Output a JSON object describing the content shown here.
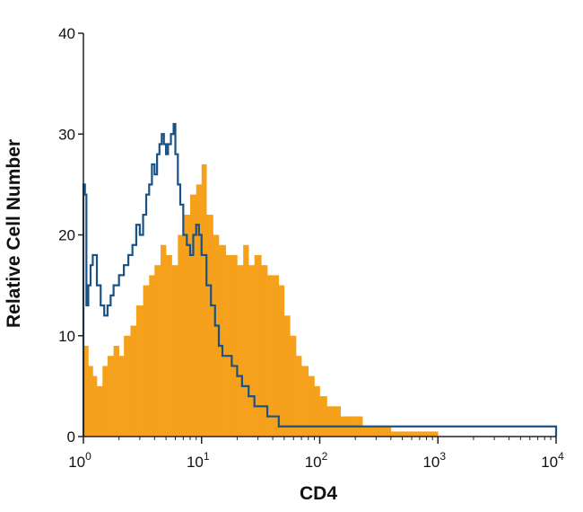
{
  "chart_data": {
    "type": "area",
    "title": "",
    "xlabel": "CD4",
    "ylabel": "Relative Cell Number",
    "xscale": "log",
    "xlim": [
      1,
      10000
    ],
    "ylim": [
      0,
      40
    ],
    "grid": false,
    "legend": "none",
    "x_ticks": [
      {
        "value": 1,
        "base": "10",
        "exp": "0"
      },
      {
        "value": 10,
        "base": "10",
        "exp": "1"
      },
      {
        "value": 100,
        "base": "10",
        "exp": "2"
      },
      {
        "value": 1000,
        "base": "10",
        "exp": "3"
      },
      {
        "value": 10000,
        "base": "10",
        "exp": "4"
      }
    ],
    "y_ticks": [
      {
        "value": 0,
        "label": "0"
      },
      {
        "value": 10,
        "label": "10"
      },
      {
        "value": 20,
        "label": "20"
      },
      {
        "value": 30,
        "label": "30"
      },
      {
        "value": 40,
        "label": "40"
      }
    ],
    "series": [
      {
        "style": "filled-histogram",
        "color": "#F5A11C",
        "x": [
          1.0,
          1.1,
          1.2,
          1.3,
          1.45,
          1.6,
          1.8,
          2.0,
          2.2,
          2.5,
          2.8,
          3.2,
          3.6,
          4.0,
          4.5,
          5.0,
          5.6,
          6.3,
          7.0,
          8.0,
          9.0,
          10.0,
          11.0,
          12.5,
          14.0,
          16.0,
          18.0,
          20.0,
          22.5,
          25.0,
          28.0,
          32.0,
          36.0,
          40.0,
          45.0,
          50.0,
          56.0,
          63.0,
          70.0,
          80.0,
          90.0,
          100.0,
          115.0,
          130.0,
          150.0,
          170.0,
          200.0,
          230.0,
          260.0,
          300.0,
          350.0,
          400.0,
          500.0,
          600.0,
          700.0,
          850.0,
          1000.0
        ],
        "y": [
          9,
          7,
          6,
          5,
          7,
          8,
          9,
          8,
          10,
          11,
          13,
          15,
          16,
          17,
          19,
          18,
          17,
          20,
          22,
          24,
          25,
          27,
          22,
          20,
          19,
          18,
          18,
          17,
          19,
          17,
          18,
          17,
          16,
          16,
          15,
          12,
          10,
          8,
          7,
          6,
          5,
          4,
          3,
          3,
          2,
          2,
          2,
          1,
          1,
          1,
          1,
          0.5,
          0.5,
          0.5,
          0.5,
          0.5,
          0
        ]
      },
      {
        "style": "outline-histogram",
        "color": "#1A5286",
        "x": [
          1.0,
          1.03,
          1.06,
          1.1,
          1.15,
          1.2,
          1.3,
          1.4,
          1.5,
          1.6,
          1.7,
          1.8,
          2.0,
          2.2,
          2.4,
          2.6,
          2.8,
          3.0,
          3.2,
          3.4,
          3.6,
          3.8,
          4.0,
          4.2,
          4.4,
          4.6,
          4.8,
          5.0,
          5.2,
          5.5,
          5.8,
          6.0,
          6.3,
          6.6,
          7.0,
          7.5,
          8.0,
          8.5,
          9.0,
          9.5,
          10.0,
          11.0,
          12.0,
          13.0,
          14.0,
          15.0,
          16.0,
          18.0,
          20.0,
          22.0,
          25.0,
          28.0,
          32.0,
          36.0,
          40.0,
          45.0,
          50.0,
          55.0,
          60.0,
          70.0,
          80.0,
          90.0,
          100.0,
          110.0,
          120.0,
          140.0,
          160.0,
          180.0,
          200.0,
          230.0,
          260.0,
          300.0,
          350.0,
          400.0,
          500.0,
          700.0,
          900.0,
          1100.0,
          1500.0,
          2000.0,
          2500.0,
          2800.0,
          3200.0,
          4000.0,
          5000.0,
          5500.0,
          7000.0,
          10000.0
        ],
        "y": [
          25,
          24,
          13,
          15,
          17,
          18,
          15,
          13,
          12,
          13,
          14,
          15,
          16,
          17,
          18,
          19,
          21,
          20,
          22,
          24,
          25,
          27,
          26,
          28,
          29,
          30,
          29,
          28,
          29,
          30,
          31,
          28,
          25,
          23,
          20,
          19,
          18,
          20,
          21,
          20,
          18,
          15,
          13,
          11,
          9,
          8,
          8,
          7,
          6,
          5,
          4,
          3,
          3,
          2,
          2,
          1,
          1,
          1,
          1,
          1,
          1,
          1,
          1,
          1,
          1,
          1,
          1,
          1,
          1,
          1,
          1,
          1,
          1,
          1,
          1,
          1,
          1,
          1,
          1,
          1,
          1,
          1,
          1,
          1,
          1,
          1,
          1,
          0
        ]
      }
    ]
  }
}
